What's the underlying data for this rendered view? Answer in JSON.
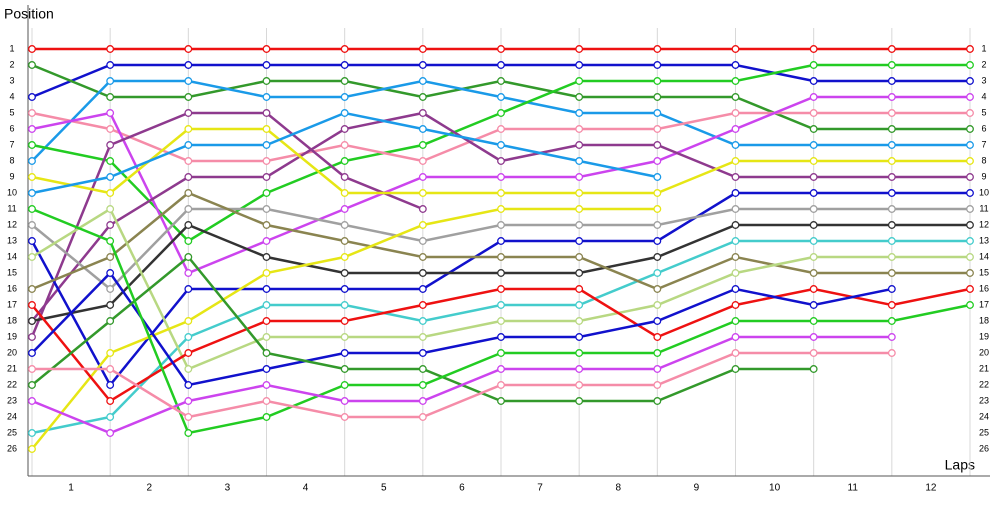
{
  "chart_data": {
    "type": "line",
    "y_label": "Position",
    "x_label": "Laps",
    "x": [
      0,
      1,
      2,
      3,
      4,
      5,
      6,
      7,
      8,
      9,
      10,
      11,
      12
    ],
    "xlim": [
      0,
      12
    ],
    "xticks": [
      {
        "value": 0.5,
        "label": "1"
      },
      {
        "value": 1.5,
        "label": "2"
      },
      {
        "value": 2.5,
        "label": "3"
      },
      {
        "value": 3.5,
        "label": "4"
      },
      {
        "value": 4.5,
        "label": "5"
      },
      {
        "value": 5.5,
        "label": "6"
      },
      {
        "value": 6.5,
        "label": "7"
      },
      {
        "value": 7.5,
        "label": "8"
      },
      {
        "value": 8.5,
        "label": "9"
      },
      {
        "value": 9.5,
        "label": "10"
      },
      {
        "value": 10.5,
        "label": "11"
      },
      {
        "value": 11.5,
        "label": "12"
      }
    ],
    "ylim": [
      0,
      27
    ],
    "y_reversed": true,
    "yticks": [
      1,
      2,
      3,
      4,
      5,
      6,
      7,
      8,
      9,
      10,
      11,
      12,
      13,
      14,
      15,
      16,
      17,
      18,
      19,
      20,
      21,
      22,
      23,
      24,
      25,
      26
    ],
    "series": [
      {
        "color": "#ee1111",
        "values": [
          1,
          1,
          1,
          1,
          1,
          1,
          1,
          1,
          1,
          1,
          1,
          1,
          1
        ]
      },
      {
        "color": "#1111cc",
        "values": [
          4,
          2,
          2,
          2,
          2,
          2,
          2,
          2,
          2,
          2,
          3,
          3,
          3
        ]
      },
      {
        "color": "#33992b",
        "values": [
          2,
          4,
          4,
          3,
          3,
          4,
          3,
          4,
          4,
          4,
          6,
          6,
          6
        ]
      },
      {
        "color": "#1a9ae8",
        "values": [
          8,
          3,
          3,
          4,
          4,
          3,
          4,
          5,
          5,
          7,
          7,
          7,
          7
        ]
      },
      {
        "color": "#22cc22",
        "values": [
          7,
          8,
          13,
          10,
          8,
          7,
          5,
          3,
          3,
          3,
          2,
          2,
          2
        ]
      },
      {
        "color": "#f58ca8",
        "values": [
          5,
          6,
          8,
          8,
          7,
          8,
          6,
          6,
          6,
          5,
          5,
          5,
          5
        ]
      },
      {
        "color": "#cc44ee",
        "values": [
          6,
          5,
          15,
          13,
          11,
          9,
          9,
          9,
          8,
          6,
          4,
          4,
          4
        ]
      },
      {
        "color": "#8e3a8e",
        "values": [
          19,
          7,
          5,
          5,
          9,
          11,
          null,
          null,
          null,
          null,
          null,
          null,
          null
        ]
      },
      {
        "color": "#8e3a8e",
        "values": [
          18,
          12,
          9,
          9,
          6,
          5,
          8,
          7,
          7,
          9,
          9,
          9,
          9
        ]
      },
      {
        "color": "#e6e615",
        "values": [
          9,
          10,
          6,
          6,
          10,
          10,
          10,
          10,
          10,
          8,
          8,
          8,
          8
        ]
      },
      {
        "color": "#1a9ae8",
        "values": [
          10,
          9,
          7,
          7,
          5,
          6,
          7,
          8,
          9,
          null,
          null,
          null,
          null
        ]
      },
      {
        "color": "#1111cc",
        "values": [
          13,
          22,
          16,
          16,
          16,
          16,
          13,
          13,
          13,
          10,
          10,
          10,
          10
        ]
      },
      {
        "color": "#a0a0a0",
        "values": [
          12,
          16,
          11,
          11,
          12,
          13,
          12,
          12,
          12,
          11,
          11,
          11,
          11
        ]
      },
      {
        "color": "#333333",
        "values": [
          18,
          17,
          12,
          14,
          15,
          15,
          15,
          15,
          14,
          12,
          12,
          12,
          12
        ]
      },
      {
        "color": "#44cccc",
        "values": [
          25,
          24,
          19,
          17,
          17,
          18,
          17,
          17,
          15,
          13,
          13,
          13,
          13
        ]
      },
      {
        "color": "#8a8450",
        "values": [
          16,
          14,
          10,
          12,
          13,
          14,
          14,
          14,
          16,
          14,
          15,
          15,
          15
        ]
      },
      {
        "color": "#b8d882",
        "values": [
          14,
          11,
          21,
          19,
          19,
          19,
          18,
          18,
          17,
          15,
          14,
          14,
          14
        ]
      },
      {
        "color": "#e6e615",
        "values": [
          26,
          20,
          18,
          15,
          14,
          12,
          11,
          11,
          11,
          null,
          null,
          null,
          null
        ]
      },
      {
        "color": "#ee1111",
        "values": [
          17,
          23,
          20,
          18,
          18,
          17,
          16,
          16,
          19,
          17,
          16,
          17,
          16
        ]
      },
      {
        "color": "#1111cc",
        "values": [
          20,
          15,
          22,
          21,
          20,
          20,
          19,
          19,
          18,
          16,
          17,
          16,
          null
        ]
      },
      {
        "color": "#33992b",
        "values": [
          22,
          18,
          14,
          20,
          21,
          21,
          23,
          23,
          23,
          21,
          21,
          null,
          null
        ]
      },
      {
        "color": "#22cc22",
        "values": [
          11,
          13,
          25,
          24,
          22,
          22,
          20,
          20,
          20,
          18,
          18,
          18,
          17
        ]
      },
      {
        "color": "#cc44ee",
        "values": [
          23,
          25,
          23,
          22,
          23,
          23,
          21,
          21,
          21,
          19,
          19,
          19,
          null
        ]
      },
      {
        "color": "#f58ca8",
        "values": [
          21,
          21,
          24,
          23,
          24,
          24,
          22,
          22,
          22,
          20,
          20,
          20,
          null
        ]
      }
    ]
  }
}
